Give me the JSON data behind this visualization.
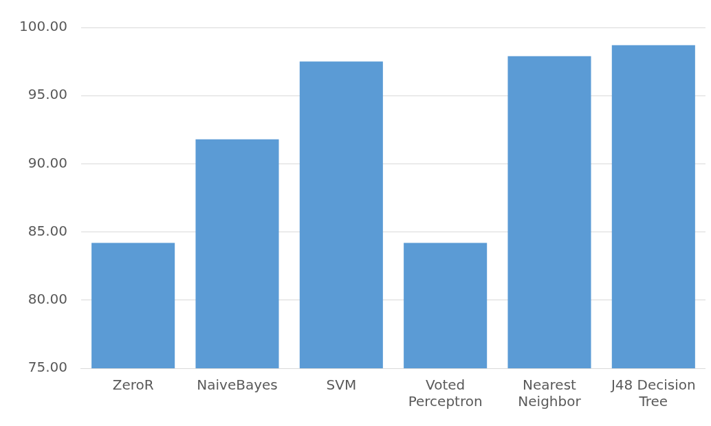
{
  "chart_data": {
    "type": "bar",
    "categories": [
      "ZeroR",
      "NaiveBayes",
      "SVM",
      "Voted Perceptron",
      "Nearest Neighbor",
      "J48 Decision Tree"
    ],
    "values": [
      84.2,
      91.8,
      97.5,
      84.2,
      97.9,
      98.7
    ],
    "color": "#5b9bd5",
    "ylim": [
      75,
      100
    ],
    "yticks": [
      {
        "value": 75,
        "label": "75.00"
      },
      {
        "value": 80,
        "label": "80.00"
      },
      {
        "value": 85,
        "label": "85.00"
      },
      {
        "value": 90,
        "label": "90.00"
      },
      {
        "value": 95,
        "label": "95.00"
      },
      {
        "value": 100,
        "label": "100.00"
      }
    ],
    "grid": "y",
    "legend": false
  }
}
